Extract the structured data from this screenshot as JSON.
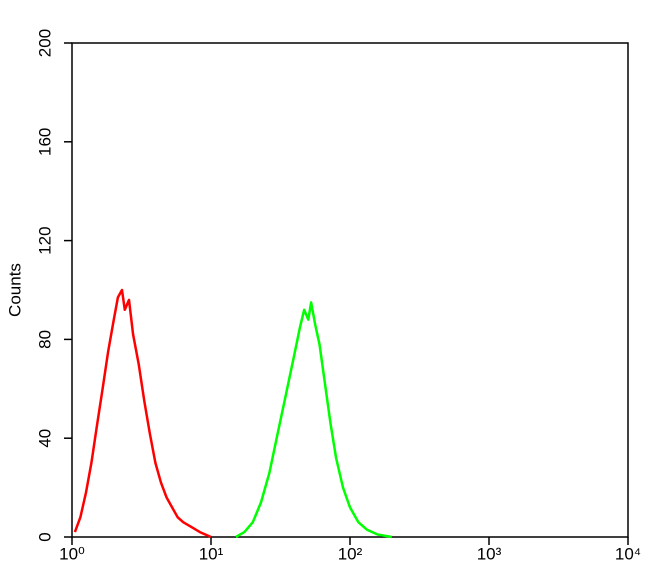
{
  "chart_data": {
    "type": "line",
    "y_label": "Counts",
    "x_log": true,
    "xlim": [
      1,
      10000
    ],
    "xticks": [
      {
        "value": 1,
        "label": "10⁰"
      },
      {
        "value": 10,
        "label": "10¹"
      },
      {
        "value": 100,
        "label": "10²"
      },
      {
        "value": 1000,
        "label": "10³"
      },
      {
        "value": 10000,
        "label": "10⁴"
      }
    ],
    "ylim": [
      0,
      200
    ],
    "yticks": [
      0,
      40,
      80,
      120,
      160,
      200
    ],
    "series": [
      {
        "color": "#ff0000",
        "x": [
          1.05,
          1.15,
          1.26,
          1.38,
          1.51,
          1.66,
          1.82,
          2.0,
          2.14,
          2.29,
          2.4,
          2.57,
          2.75,
          3.02,
          3.31,
          3.63,
          3.98,
          4.37,
          4.79,
          5.25,
          5.75,
          6.31,
          7.24,
          8.32,
          10
        ],
        "values": [
          2,
          8,
          18,
          30,
          45,
          60,
          75,
          88,
          97,
          100,
          92,
          96,
          82,
          70,
          55,
          42,
          30,
          22,
          16,
          12,
          8,
          6,
          4,
          2,
          0
        ]
      },
      {
        "color": "#00ff00",
        "x": [
          15.1,
          17.4,
          20,
          22.9,
          26.3,
          30.2,
          34.7,
          39.8,
          43.7,
          46.8,
          50.1,
          52.5,
          56.2,
          60.3,
          66.1,
          72.4,
          79.4,
          89.1,
          100,
          115,
          132,
          158,
          200
        ],
        "values": [
          0,
          2,
          6,
          14,
          26,
          42,
          58,
          74,
          85,
          92,
          88,
          95,
          86,
          78,
          62,
          46,
          32,
          20,
          12,
          6,
          3,
          1,
          0
        ]
      }
    ]
  }
}
